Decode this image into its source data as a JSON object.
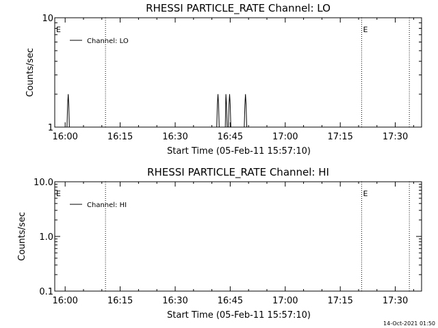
{
  "chart_data": [
    {
      "type": "line",
      "title": "RHESSI PARTICLE_RATE Channel: LO",
      "xlabel": "Start Time (05-Feb-11 15:57:10)",
      "ylabel": "Counts/sec",
      "yscale": "log",
      "ylim": [
        1,
        10
      ],
      "y_tick_labels": [
        "1",
        "10"
      ],
      "x_tick_labels": [
        "16:00",
        "16:15",
        "16:30",
        "16:45",
        "17:00",
        "17:15",
        "17:30"
      ],
      "xlim": [
        "15:57:10",
        "17:37:10"
      ],
      "legend": {
        "position": "top-left",
        "entries": [
          "Channel: LO"
        ]
      },
      "series": [
        {
          "name": "Channel: LO",
          "x": [
            "16:00:30",
            "16:00:40",
            "16:00:50",
            "16:01:00",
            "16:01:10",
            "16:41:20",
            "16:41:30",
            "16:41:40",
            "16:41:50",
            "16:42:00",
            "16:43:40",
            "16:43:50",
            "16:44:00",
            "16:44:10",
            "16:44:30",
            "16:44:40",
            "16:44:50",
            "16:45:00",
            "16:45:10",
            "16:48:50",
            "16:49:00",
            "16:49:10",
            "16:49:20",
            "16:49:30"
          ],
          "values": [
            1,
            1.6,
            2,
            1.6,
            1,
            1,
            1.6,
            2,
            1.6,
            1,
            1,
            2,
            1.6,
            1,
            1,
            1.6,
            2,
            1.6,
            1,
            1,
            1.6,
            2,
            1.6,
            1
          ]
        }
      ],
      "event_lines": [
        "16:11:00",
        "17:20:50",
        "17:33:50"
      ],
      "event_markers": [
        {
          "label": "E",
          "time": "15:57:10"
        },
        {
          "label": "E",
          "time": "17:20:50"
        }
      ]
    },
    {
      "type": "line",
      "title": "RHESSI PARTICLE_RATE Channel: HI",
      "xlabel": "Start Time (05-Feb-11 15:57:10)",
      "ylabel": "Counts/sec",
      "yscale": "log",
      "ylim": [
        0.1,
        10
      ],
      "y_tick_labels": [
        "0.1",
        "1.0",
        "10.0"
      ],
      "x_tick_labels": [
        "16:00",
        "16:15",
        "16:30",
        "16:45",
        "17:00",
        "17:15",
        "17:30"
      ],
      "xlim": [
        "15:57:10",
        "17:37:10"
      ],
      "legend": {
        "position": "top-left",
        "entries": [
          "Channel: HI"
        ]
      },
      "series": [
        {
          "name": "Channel: HI",
          "x": [],
          "values": []
        }
      ],
      "event_lines": [
        "16:11:00",
        "17:20:50",
        "17:33:50"
      ],
      "event_markers": [
        {
          "label": "E",
          "time": "15:57:10"
        },
        {
          "label": "E",
          "time": "17:20:50"
        }
      ]
    }
  ],
  "footer": {
    "timestamp": "14-Oct-2021 01:50"
  }
}
